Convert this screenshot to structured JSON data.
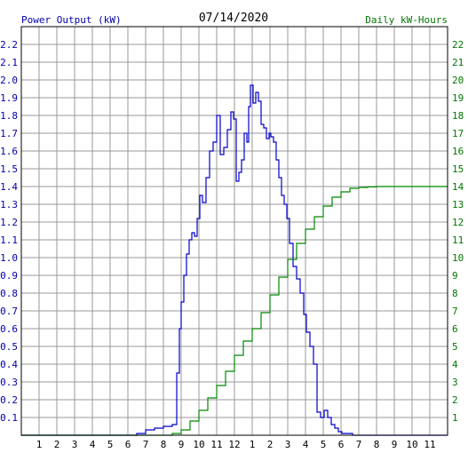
{
  "chart_data": {
    "type": "line",
    "title": "07/14/2020",
    "left_axis_label": "Power Output (kW)",
    "right_axis_label": "Daily kW-Hours",
    "x_tick_labels": [
      "1",
      "2",
      "3",
      "4",
      "5",
      "6",
      "7",
      "8",
      "9",
      "10",
      "11",
      "12",
      "1",
      "2",
      "3",
      "4",
      "5",
      "6",
      "7",
      "8",
      "9",
      "10",
      "11"
    ],
    "y_left": {
      "min": 0,
      "max": 2.3,
      "ticks": [
        "0.1",
        "0.2",
        "0.3",
        "0.4",
        "0.5",
        "0.6",
        "0.7",
        "0.8",
        "0.9",
        "1.0",
        "1.1",
        "1.2",
        "1.3",
        "1.4",
        "1.5",
        "1.6",
        "1.7",
        "1.8",
        "1.9",
        "2.0",
        "2.1",
        "2.2"
      ]
    },
    "y_right": {
      "min": 0,
      "max": 23,
      "ticks": [
        "1",
        "2",
        "3",
        "4",
        "5",
        "6",
        "7",
        "8",
        "9",
        "10",
        "11",
        "12",
        "13",
        "14",
        "15",
        "16",
        "17",
        "18",
        "19",
        "20",
        "21",
        "22"
      ]
    },
    "grid": true,
    "colors": {
      "power": "#0000cc",
      "energy": "#008800",
      "grid": "#999999",
      "left_text": "#0000aa",
      "right_text": "#007700"
    },
    "series": [
      {
        "axis": "left",
        "x_hours": [
          0,
          6.0,
          6.5,
          7.0,
          7.5,
          8.0,
          8.5,
          8.75,
          8.9,
          9.0,
          9.15,
          9.3,
          9.45,
          9.6,
          9.75,
          9.9,
          10.05,
          10.2,
          10.4,
          10.6,
          10.8,
          11.0,
          11.2,
          11.4,
          11.6,
          11.8,
          11.95,
          12.1,
          12.25,
          12.4,
          12.55,
          12.7,
          12.8,
          12.9,
          13.05,
          13.2,
          13.35,
          13.5,
          13.65,
          13.8,
          13.95,
          14.05,
          14.2,
          14.35,
          14.5,
          14.65,
          14.8,
          14.95,
          15.1,
          15.3,
          15.5,
          15.7,
          15.9,
          16.05,
          16.25,
          16.45,
          16.65,
          16.85,
          17.05,
          17.25,
          17.45,
          17.65,
          17.85,
          18.05,
          18.25,
          18.45,
          18.65,
          18.85,
          19.05,
          19.25,
          19.45,
          19.65,
          19.85,
          20.1,
          20.5,
          20.8,
          21.0,
          24
        ],
        "values": [
          0,
          0,
          0.01,
          0.03,
          0.04,
          0.05,
          0.06,
          0.35,
          0.6,
          0.75,
          0.9,
          1.02,
          1.1,
          1.14,
          1.12,
          1.22,
          1.35,
          1.31,
          1.45,
          1.6,
          1.65,
          1.8,
          1.58,
          1.62,
          1.72,
          1.82,
          1.78,
          1.43,
          1.48,
          1.55,
          1.7,
          1.65,
          1.85,
          1.97,
          1.87,
          1.93,
          1.88,
          1.75,
          1.73,
          1.67,
          1.7,
          1.68,
          1.65,
          1.55,
          1.45,
          1.35,
          1.3,
          1.22,
          1.08,
          0.95,
          0.88,
          0.8,
          0.68,
          0.58,
          0.5,
          0.4,
          0.13,
          0.1,
          0.14,
          0.1,
          0.06,
          0.04,
          0.02,
          0.01,
          0.01,
          0.01,
          0,
          0,
          0,
          0,
          0,
          0,
          0,
          0,
          0,
          0,
          0,
          0
        ]
      },
      {
        "axis": "right",
        "x_hours": [
          0,
          8.0,
          8.5,
          9.0,
          9.5,
          10.0,
          10.5,
          11.0,
          11.5,
          12.0,
          12.5,
          13.0,
          13.5,
          14.0,
          14.5,
          15.0,
          15.5,
          16.0,
          16.5,
          17.0,
          17.5,
          18.0,
          18.5,
          19.0,
          19.5,
          20.0,
          20.5,
          24
        ],
        "values": [
          0,
          0,
          0.1,
          0.3,
          0.8,
          1.4,
          2.1,
          2.8,
          3.6,
          4.5,
          5.3,
          6.0,
          6.9,
          7.9,
          8.9,
          9.9,
          10.8,
          11.6,
          12.3,
          12.9,
          13.4,
          13.7,
          13.9,
          13.95,
          13.98,
          14.0,
          14.0,
          14.0
        ]
      }
    ]
  }
}
